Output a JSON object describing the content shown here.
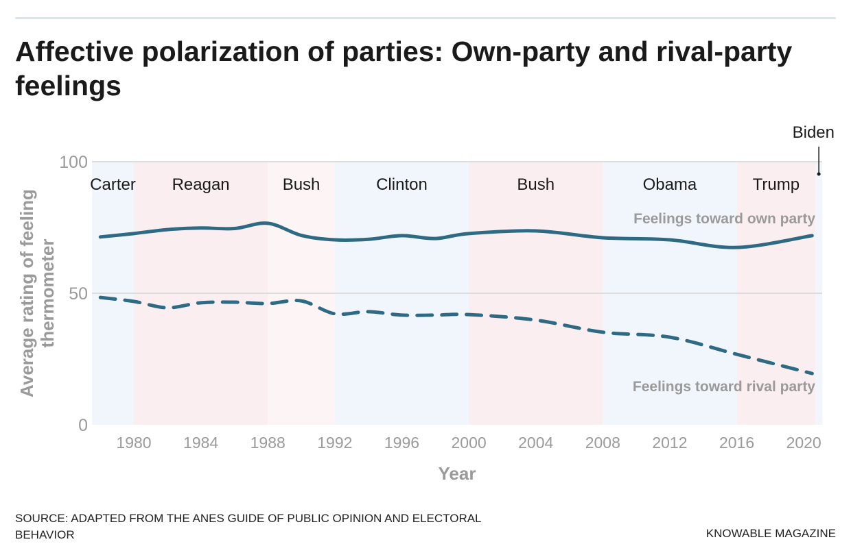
{
  "title": "Affective polarization of parties: Own-party and rival-party feelings",
  "source": "SOURCE: ADAPTED FROM THE ANES GUIDE OF PUBLIC OPINION AND ELECTORAL BEHAVIOR",
  "credit": "KNOWABLE MAGAZINE",
  "chart_data": {
    "type": "line",
    "xlabel": "Year",
    "ylabel": "Average rating of feeling thermometer",
    "xlim": [
      1977.5,
      2021.1
    ],
    "ylim": [
      0,
      100
    ],
    "xticks": [
      1980,
      1984,
      1988,
      1992,
      1996,
      2000,
      2004,
      2008,
      2012,
      2016,
      2020
    ],
    "yticks": [
      0,
      50,
      100
    ],
    "grid": "horizontal",
    "colors": {
      "line": "#2e6a84",
      "dem": "#f0f6fb",
      "rep": "#fbeef0",
      "rep_light": "#fdf4f5",
      "label": "#9a9a9a"
    },
    "presidents": [
      {
        "name": "Carter",
        "start": 1977.5,
        "end": 1980,
        "party": "dem"
      },
      {
        "name": "Reagan",
        "start": 1980,
        "end": 1988,
        "party": "rep"
      },
      {
        "name": "Bush",
        "start": 1988,
        "end": 1992,
        "party": "rep_light"
      },
      {
        "name": "Clinton",
        "start": 1992,
        "end": 2000,
        "party": "dem"
      },
      {
        "name": "Bush",
        "start": 2000,
        "end": 2008,
        "party": "rep"
      },
      {
        "name": "Obama",
        "start": 2008,
        "end": 2016,
        "party": "dem"
      },
      {
        "name": "Trump",
        "start": 2016,
        "end": 2020.7,
        "party": "rep"
      },
      {
        "name": "Biden",
        "start": 2020.7,
        "end": 2021.1,
        "party": "dem"
      }
    ],
    "x": [
      1978,
      1980,
      1982,
      1984,
      1986,
      1988,
      1990,
      1992,
      1994,
      1996,
      1998,
      2000,
      2004,
      2008,
      2012,
      2016,
      2020.5
    ],
    "series": [
      {
        "name": "Feelings toward own party",
        "style": "solid",
        "values": [
          71.4,
          72.7,
          74.2,
          74.8,
          74.6,
          76.6,
          72.0,
          70.3,
          70.5,
          71.9,
          70.8,
          72.7,
          73.7,
          71.1,
          70.3,
          67.4,
          71.9
        ]
      },
      {
        "name": "Feelings toward rival party",
        "style": "dashed",
        "values": [
          48.4,
          46.9,
          44.5,
          46.4,
          46.6,
          46.1,
          47.1,
          42.2,
          43.0,
          41.7,
          41.7,
          41.9,
          39.8,
          35.2,
          33.3,
          26.8,
          19.5
        ]
      }
    ]
  }
}
